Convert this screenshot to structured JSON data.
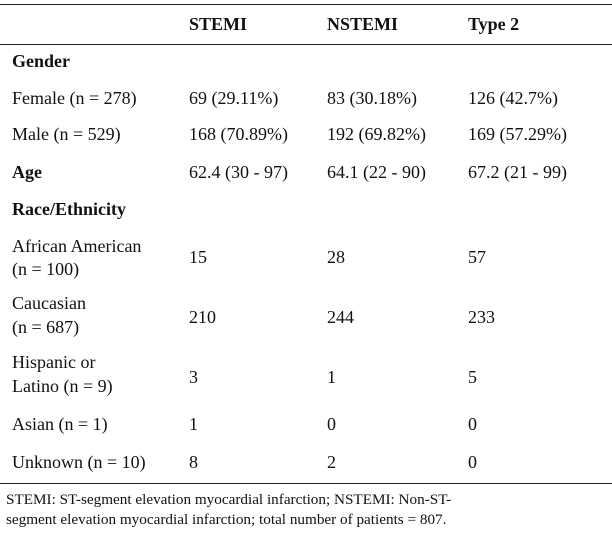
{
  "table": {
    "headers": [
      "",
      "STEMI",
      "NSTEMI",
      "Type 2"
    ],
    "rows": [
      {
        "label": [
          "Gender"
        ],
        "section": true,
        "cells": [
          "",
          "",
          ""
        ]
      },
      {
        "label": [
          "Female (n = 278)"
        ],
        "section": false,
        "cells": [
          "69 (29.11%)",
          "83 (30.18%)",
          "126 (42.7%)"
        ]
      },
      {
        "label": [
          "Male (n = 529)"
        ],
        "section": false,
        "cells": [
          "168 (70.89%)",
          "192 (69.82%)",
          "169 (57.29%)"
        ]
      },
      {
        "label": [
          "Age"
        ],
        "section": true,
        "cells": [
          "62.4 (30 - 97)",
          "64.1 (22 - 90)",
          "67.2 (21 - 99)"
        ]
      },
      {
        "label": [
          "Race/Ethnicity"
        ],
        "section": true,
        "cells": [
          "",
          "",
          ""
        ]
      },
      {
        "label": [
          "African American",
          "(n = 100)"
        ],
        "section": false,
        "cells": [
          "15",
          "28",
          "57"
        ]
      },
      {
        "label": [
          "Caucasian",
          "(n = 687)"
        ],
        "section": false,
        "cells": [
          "210",
          "244",
          "233"
        ]
      },
      {
        "label": [
          "Hispanic or",
          "Latino (n = 9)"
        ],
        "section": false,
        "cells": [
          "3",
          "1",
          "5"
        ]
      },
      {
        "label": [
          "Asian (n = 1)"
        ],
        "section": false,
        "cells": [
          "1",
          "0",
          "0"
        ]
      },
      {
        "label": [
          "Unknown (n = 10)"
        ],
        "section": false,
        "cells": [
          "8",
          "2",
          "0"
        ]
      }
    ]
  },
  "caption": {
    "lines": [
      "STEMI: ST-segment elevation myocardial infarction; NSTEMI: Non-ST-",
      "segment elevation myocardial infarction; total number of patients = 807."
    ]
  }
}
